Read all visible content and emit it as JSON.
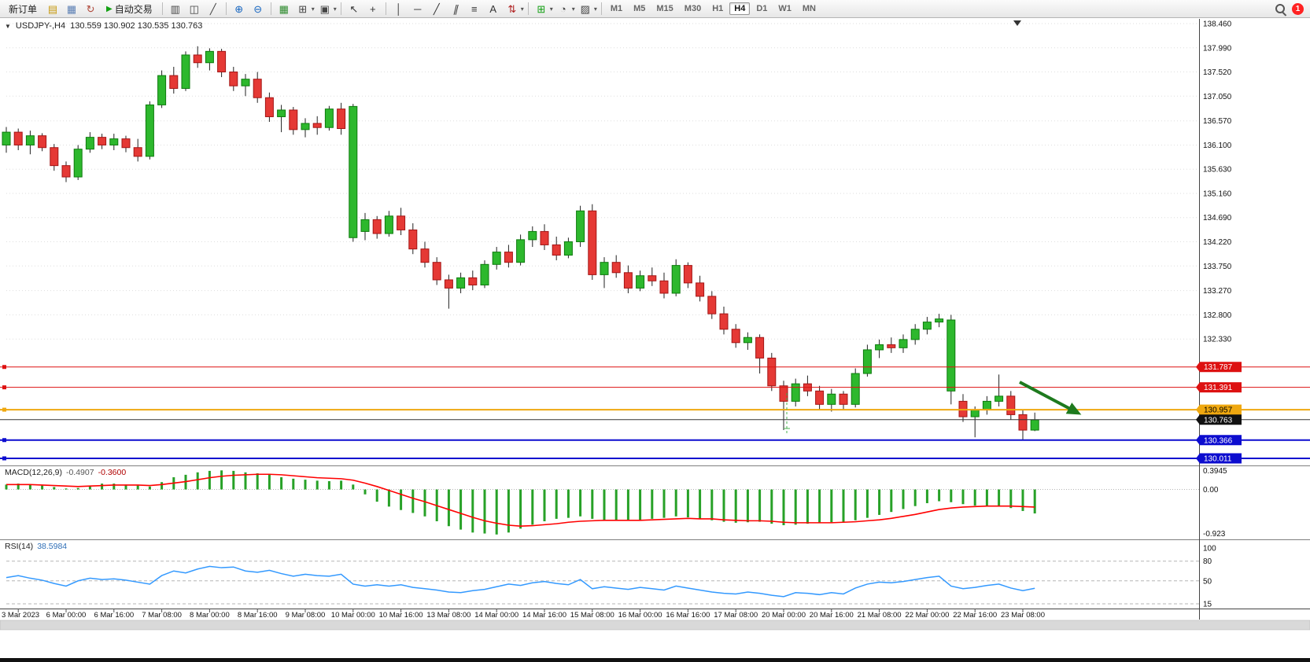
{
  "toolbar": {
    "active_timeframe": "H4",
    "items": [
      {
        "t": "btn",
        "name": "new-order-button",
        "label": "新订单"
      },
      {
        "t": "icon",
        "name": "market-watch-icon",
        "glyph": "▤",
        "color": "#c79a10"
      },
      {
        "t": "icon",
        "name": "data-window-icon",
        "glyph": "▦",
        "color": "#5b7fb4"
      },
      {
        "t": "icon",
        "name": "navigator-icon",
        "glyph": "↻",
        "color": "#b0483a"
      },
      {
        "t": "btn",
        "name": "auto-trading-button",
        "label": "自动交易",
        "glyph": "▶",
        "glyph_color": "#12a012"
      },
      {
        "t": "sep"
      },
      {
        "t": "icon",
        "name": "bar-chart-icon",
        "glyph": "▥",
        "color": "#444444"
      },
      {
        "t": "icon",
        "name": "candlestick-chart-icon",
        "glyph": "◫",
        "color": "#444444"
      },
      {
        "t": "icon",
        "name": "line-chart-icon",
        "glyph": "╱",
        "color": "#444444"
      },
      {
        "t": "sep"
      },
      {
        "t": "icon",
        "name": "zoom-in-icon",
        "glyph": "⊕",
        "color": "#1565c0"
      },
      {
        "t": "icon",
        "name": "zoom-out-icon",
        "glyph": "⊖",
        "color": "#1565c0"
      },
      {
        "t": "sep"
      },
      {
        "t": "icon",
        "name": "tile-windows-icon",
        "glyph": "▦",
        "color": "#2e8b2e"
      },
      {
        "t": "icon",
        "name": "new-chart-icon",
        "glyph": "⊞",
        "color": "#444444",
        "dd": true
      },
      {
        "t": "icon",
        "name": "chart-profiles-icon",
        "glyph": "▣",
        "color": "#444444",
        "dd": true
      },
      {
        "t": "sep"
      },
      {
        "t": "icon",
        "name": "cursor-icon",
        "glyph": "↖",
        "color": "#333333"
      },
      {
        "t": "icon",
        "name": "crosshair-icon",
        "glyph": "+",
        "color": "#333333"
      },
      {
        "t": "sep"
      },
      {
        "t": "icon",
        "name": "vertical-line-icon",
        "glyph": "│",
        "color": "#333333"
      },
      {
        "t": "icon",
        "name": "horizontal-line-icon",
        "glyph": "─",
        "color": "#333333"
      },
      {
        "t": "icon",
        "name": "trendline-icon",
        "glyph": "╱",
        "color": "#333333"
      },
      {
        "t": "icon",
        "name": "equidistant-channel-icon",
        "glyph": "∥",
        "color": "#333333"
      },
      {
        "t": "icon",
        "name": "fibonacci-icon",
        "glyph": "≡",
        "color": "#333333"
      },
      {
        "t": "icon",
        "name": "text-label-icon",
        "glyph": "A",
        "color": "#333333"
      },
      {
        "t": "icon",
        "name": "arrows-icon",
        "glyph": "⇅",
        "color": "#b02020",
        "dd": true
      },
      {
        "t": "sep"
      },
      {
        "t": "icon",
        "name": "indicators-icon",
        "glyph": "⊞",
        "color": "#12a012",
        "dd": true
      },
      {
        "t": "icon",
        "name": "periods-icon",
        "glyph": "◔",
        "color": "#444444",
        "dd": true
      },
      {
        "t": "icon",
        "name": "templates-icon",
        "glyph": "▨",
        "color": "#444444",
        "dd": true
      },
      {
        "t": "sep"
      },
      {
        "t": "tf",
        "name": "timeframe-m1",
        "label": "M1"
      },
      {
        "t": "tf",
        "name": "timeframe-m5",
        "label": "M5"
      },
      {
        "t": "tf",
        "name": "timeframe-m15",
        "label": "M15"
      },
      {
        "t": "tf",
        "name": "timeframe-m30",
        "label": "M30"
      },
      {
        "t": "tf",
        "name": "timeframe-h1",
        "label": "H1"
      },
      {
        "t": "tf",
        "name": "timeframe-h4",
        "label": "H4"
      },
      {
        "t": "tf",
        "name": "timeframe-d1",
        "label": "D1"
      },
      {
        "t": "tf",
        "name": "timeframe-w1",
        "label": "W1"
      },
      {
        "t": "tf",
        "name": "timeframe-mn",
        "label": "MN"
      },
      {
        "t": "spacer"
      },
      {
        "t": "search",
        "name": "search-icon"
      },
      {
        "t": "badge",
        "name": "notification-badge",
        "label": "1"
      }
    ]
  },
  "chart_header": {
    "collapse_glyph": "▼",
    "symbol": "USDJPY-,H4",
    "ohlc": "130.559 130.902 130.535 130.763"
  },
  "price_axis": {
    "labels": [
      "138.460",
      "137.990",
      "137.520",
      "137.050",
      "136.570",
      "136.100",
      "135.630",
      "135.160",
      "134.690",
      "134.220",
      "133.750",
      "133.270",
      "132.800",
      "132.330"
    ]
  },
  "hlines": [
    {
      "value": 131.787,
      "label": "131.787",
      "color": "#dd1111",
      "text_color": "#ffffff",
      "width": 1
    },
    {
      "value": 131.391,
      "label": "131.391",
      "color": "#dd1111",
      "text_color": "#ffffff",
      "width": 1
    },
    {
      "value": 130.957,
      "label": "130.957",
      "color": "#efa810",
      "text_color": "#000000",
      "width": 2
    },
    {
      "value": 130.366,
      "label": "130.366",
      "color": "#0d0dcf",
      "text_color": "#ffffff",
      "width": 2
    },
    {
      "value": 130.011,
      "label": "130.011",
      "color": "#0d0dcf",
      "text_color": "#ffffff",
      "width": 2
    }
  ],
  "current_price_tag": {
    "value": 130.763,
    "label": "130.763",
    "color": "#111111",
    "text_color": "#ffffff"
  },
  "macd": {
    "title": "MACD(12,26,9)",
    "value_main": "-0.4907",
    "value_signal": "-0.3600",
    "axis": [
      "0.3945",
      "0.00",
      "-0.923"
    ]
  },
  "rsi": {
    "title": "RSI(14)",
    "value": "38.5984",
    "axis": [
      "100",
      "80",
      "50",
      "15"
    ],
    "levels": [
      80,
      50,
      15
    ]
  },
  "time_axis": [
    "3 Mar 2023",
    "6 Mar 00:00",
    "6 Mar 16:00",
    "7 Mar 08:00",
    "8 Mar 00:00",
    "8 Mar 16:00",
    "9 Mar 08:00",
    "10 Mar 00:00",
    "10 Mar 16:00",
    "13 Mar 08:00",
    "14 Mar 00:00",
    "14 Mar 16:00",
    "15 Mar 08:00",
    "16 Mar 00:00",
    "16 Mar 16:00",
    "17 Mar 08:00",
    "20 Mar 00:00",
    "20 Mar 16:00",
    "21 Mar 08:00",
    "22 Mar 00:00",
    "22 Mar 16:00",
    "23 Mar 08:00"
  ],
  "chart_data": [
    {
      "type": "candlestick",
      "title": "USDJPY-,H4",
      "symbol": "USDJPY-",
      "timeframe": "H4",
      "ylim": [
        129.9,
        138.5
      ],
      "up_color": "#2db82d",
      "down_color": "#e53935",
      "open_high_low_close": [
        [
          136.1,
          136.45,
          135.95,
          136.35
        ],
        [
          136.35,
          136.42,
          136.0,
          136.1
        ],
        [
          136.1,
          136.38,
          135.92,
          136.28
        ],
        [
          136.28,
          136.33,
          135.98,
          136.05
        ],
        [
          136.05,
          136.12,
          135.6,
          135.7
        ],
        [
          135.7,
          135.78,
          135.38,
          135.48
        ],
        [
          135.48,
          136.1,
          135.42,
          136.02
        ],
        [
          136.02,
          136.35,
          135.95,
          136.25
        ],
        [
          136.25,
          136.32,
          136.02,
          136.1
        ],
        [
          136.1,
          136.32,
          136.0,
          136.22
        ],
        [
          136.22,
          136.28,
          135.96,
          136.05
        ],
        [
          136.05,
          136.22,
          135.78,
          135.88
        ],
        [
          135.88,
          136.95,
          135.82,
          136.88
        ],
        [
          136.88,
          137.55,
          136.82,
          137.45
        ],
        [
          137.45,
          137.62,
          137.1,
          137.2
        ],
        [
          137.2,
          137.92,
          137.15,
          137.85
        ],
        [
          137.85,
          138.02,
          137.6,
          137.7
        ],
        [
          137.7,
          137.98,
          137.55,
          137.92
        ],
        [
          137.92,
          137.97,
          137.42,
          137.52
        ],
        [
          137.52,
          137.62,
          137.15,
          137.25
        ],
        [
          137.25,
          137.48,
          137.05,
          137.38
        ],
        [
          137.38,
          137.52,
          136.92,
          137.02
        ],
        [
          137.02,
          137.12,
          136.55,
          136.65
        ],
        [
          136.65,
          136.88,
          136.35,
          136.78
        ],
        [
          136.78,
          136.84,
          136.3,
          136.4
        ],
        [
          136.4,
          136.62,
          136.25,
          136.52
        ],
        [
          136.52,
          136.66,
          136.3,
          136.44
        ],
        [
          136.44,
          136.86,
          136.38,
          136.8
        ],
        [
          136.8,
          136.92,
          136.3,
          136.42
        ],
        [
          134.3,
          136.9,
          134.22,
          136.85
        ],
        [
          134.42,
          134.78,
          134.25,
          134.65
        ],
        [
          134.65,
          134.72,
          134.28,
          134.38
        ],
        [
          134.38,
          134.82,
          134.32,
          134.72
        ],
        [
          134.72,
          134.88,
          134.35,
          134.45
        ],
        [
          134.45,
          134.58,
          133.98,
          134.08
        ],
        [
          134.08,
          134.22,
          133.72,
          133.82
        ],
        [
          133.82,
          133.92,
          133.38,
          133.48
        ],
        [
          133.48,
          133.58,
          132.92,
          133.32
        ],
        [
          133.32,
          133.62,
          133.22,
          133.52
        ],
        [
          133.52,
          133.66,
          133.28,
          133.38
        ],
        [
          133.38,
          133.86,
          133.32,
          133.78
        ],
        [
          133.78,
          134.12,
          133.68,
          134.02
        ],
        [
          134.02,
          134.16,
          133.72,
          133.82
        ],
        [
          133.82,
          134.36,
          133.76,
          134.26
        ],
        [
          134.26,
          134.52,
          134.12,
          134.42
        ],
        [
          134.42,
          134.56,
          134.06,
          134.16
        ],
        [
          134.16,
          134.32,
          133.86,
          133.96
        ],
        [
          133.96,
          134.3,
          133.9,
          134.22
        ],
        [
          134.22,
          134.92,
          134.12,
          134.82
        ],
        [
          134.82,
          134.95,
          133.48,
          133.58
        ],
        [
          133.58,
          133.92,
          133.32,
          133.82
        ],
        [
          133.82,
          133.96,
          133.52,
          133.62
        ],
        [
          133.62,
          133.76,
          133.22,
          133.32
        ],
        [
          133.32,
          133.66,
          133.26,
          133.56
        ],
        [
          133.56,
          133.72,
          133.36,
          133.46
        ],
        [
          133.46,
          133.62,
          133.12,
          133.22
        ],
        [
          133.22,
          133.88,
          133.16,
          133.76
        ],
        [
          133.76,
          133.82,
          133.32,
          133.42
        ],
        [
          133.42,
          133.56,
          133.06,
          133.16
        ],
        [
          133.16,
          133.26,
          132.72,
          132.82
        ],
        [
          132.82,
          132.96,
          132.42,
          132.52
        ],
        [
          132.52,
          132.62,
          132.16,
          132.26
        ],
        [
          132.26,
          132.46,
          132.12,
          132.36
        ],
        [
          132.36,
          132.42,
          131.66,
          131.96
        ],
        [
          131.96,
          132.06,
          131.32,
          131.42
        ],
        [
          131.42,
          131.52,
          130.56,
          131.12
        ],
        [
          131.12,
          131.56,
          131.02,
          131.46
        ],
        [
          131.46,
          131.62,
          131.22,
          131.32
        ],
        [
          131.32,
          131.42,
          130.96,
          131.06
        ],
        [
          131.06,
          131.36,
          130.92,
          131.26
        ],
        [
          131.26,
          131.32,
          130.96,
          131.06
        ],
        [
          131.06,
          131.76,
          131.0,
          131.66
        ],
        [
          131.66,
          132.22,
          131.6,
          132.12
        ],
        [
          132.12,
          132.32,
          131.96,
          132.22
        ],
        [
          132.22,
          132.36,
          132.06,
          132.16
        ],
        [
          132.16,
          132.42,
          132.06,
          132.32
        ],
        [
          132.32,
          132.62,
          132.22,
          132.52
        ],
        [
          132.52,
          132.76,
          132.42,
          132.66
        ],
        [
          132.66,
          132.82,
          132.56,
          132.72
        ],
        [
          131.32,
          132.8,
          131.06,
          132.7
        ],
        [
          131.12,
          131.26,
          130.72,
          130.82
        ],
        [
          130.82,
          131.02,
          130.42,
          130.96
        ],
        [
          130.96,
          131.22,
          130.86,
          131.12
        ],
        [
          131.12,
          131.64,
          131.02,
          131.22
        ],
        [
          131.22,
          131.32,
          130.76,
          130.86
        ],
        [
          130.86,
          130.96,
          130.36,
          130.56
        ],
        [
          130.56,
          130.9,
          130.54,
          130.76
        ]
      ]
    },
    {
      "type": "bar",
      "name": "MACD(12,26,9)",
      "ylim": [
        -0.923,
        0.3945
      ],
      "histogram_color": "#27a127",
      "signal_color": "#ff0000",
      "histogram": [
        0.1,
        0.12,
        0.1,
        0.08,
        0.05,
        0.02,
        0.03,
        0.08,
        0.12,
        0.12,
        0.1,
        0.08,
        0.06,
        0.15,
        0.25,
        0.3,
        0.35,
        0.38,
        0.39,
        0.38,
        0.35,
        0.33,
        0.3,
        0.25,
        0.22,
        0.2,
        0.18,
        0.17,
        0.18,
        0.1,
        -0.1,
        -0.25,
        -0.35,
        -0.42,
        -0.48,
        -0.55,
        -0.65,
        -0.75,
        -0.82,
        -0.88,
        -0.9,
        -0.92,
        -0.88,
        -0.8,
        -0.72,
        -0.65,
        -0.6,
        -0.58,
        -0.55,
        -0.6,
        -0.62,
        -0.63,
        -0.64,
        -0.62,
        -0.6,
        -0.58,
        -0.55,
        -0.57,
        -0.6,
        -0.63,
        -0.66,
        -0.68,
        -0.67,
        -0.66,
        -0.7,
        -0.73,
        -0.72,
        -0.7,
        -0.68,
        -0.67,
        -0.66,
        -0.63,
        -0.58,
        -0.52,
        -0.46,
        -0.4,
        -0.34,
        -0.28,
        -0.24,
        -0.26,
        -0.3,
        -0.33,
        -0.34,
        -0.33,
        -0.38,
        -0.44,
        -0.49
      ],
      "signal_line": [
        0.1,
        0.1,
        0.1,
        0.09,
        0.08,
        0.07,
        0.06,
        0.07,
        0.08,
        0.09,
        0.09,
        0.09,
        0.08,
        0.1,
        0.13,
        0.16,
        0.2,
        0.24,
        0.27,
        0.29,
        0.3,
        0.31,
        0.31,
        0.3,
        0.28,
        0.26,
        0.24,
        0.23,
        0.22,
        0.19,
        0.13,
        0.06,
        -0.02,
        -0.1,
        -0.18,
        -0.25,
        -0.33,
        -0.41,
        -0.49,
        -0.57,
        -0.64,
        -0.69,
        -0.73,
        -0.75,
        -0.74,
        -0.72,
        -0.7,
        -0.67,
        -0.65,
        -0.64,
        -0.63,
        -0.63,
        -0.63,
        -0.63,
        -0.62,
        -0.61,
        -0.6,
        -0.59,
        -0.6,
        -0.6,
        -0.62,
        -0.63,
        -0.64,
        -0.64,
        -0.65,
        -0.67,
        -0.68,
        -0.68,
        -0.68,
        -0.68,
        -0.67,
        -0.66,
        -0.64,
        -0.62,
        -0.59,
        -0.55,
        -0.51,
        -0.46,
        -0.41,
        -0.38,
        -0.36,
        -0.35,
        -0.34,
        -0.34,
        -0.34,
        -0.35,
        -0.36
      ]
    },
    {
      "type": "line",
      "name": "RSI(14)",
      "ylim": [
        15,
        100
      ],
      "line_color": "#3399ff",
      "last_value": 38.5984,
      "values": [
        55,
        58,
        54,
        51,
        46,
        42,
        50,
        54,
        52,
        53,
        51,
        48,
        45,
        58,
        65,
        62,
        68,
        72,
        70,
        71,
        65,
        63,
        66,
        61,
        57,
        60,
        58,
        57,
        60,
        45,
        42,
        44,
        42,
        44,
        40,
        38,
        36,
        33,
        32,
        35,
        37,
        41,
        45,
        43,
        47,
        49,
        46,
        44,
        52,
        38,
        41,
        39,
        37,
        40,
        38,
        36,
        42,
        39,
        36,
        33,
        31,
        30,
        33,
        31,
        28,
        26,
        32,
        31,
        29,
        32,
        30,
        39,
        45,
        48,
        47,
        49,
        52,
        55,
        57,
        42,
        38,
        40,
        43,
        45,
        39,
        35,
        38.6
      ]
    }
  ]
}
